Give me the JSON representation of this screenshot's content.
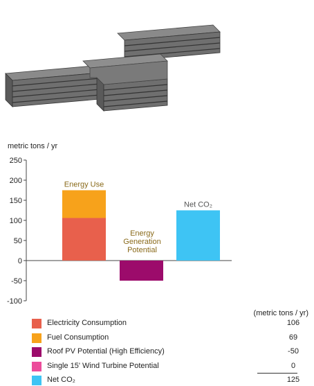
{
  "chart_data": {
    "type": "bar",
    "yunit_label": "metric tons / yr",
    "ylim": [
      -100,
      250
    ],
    "yticks": [
      250,
      200,
      150,
      100,
      50,
      0,
      -50,
      -100
    ],
    "bars": [
      {
        "annotation": "Energy Use",
        "segments": [
          {
            "name": "Electricity Consumption",
            "value": 106,
            "color": "#e8604c"
          },
          {
            "name": "Fuel Consumption",
            "value": 69,
            "color": "#f7a21b"
          }
        ]
      },
      {
        "annotation": "Energy Generation Potential",
        "annotation_lines": [
          "Energy",
          "Generation",
          "Potential"
        ],
        "segments": [
          {
            "name": "Roof PV Potential (High Efficiency)",
            "value": -50,
            "color": "#9c0b6b"
          },
          {
            "name": "Single 15' Wind Turbine Potential",
            "value": 0,
            "color": "#ec4c9b"
          }
        ]
      },
      {
        "annotation": "Net CO₂",
        "segments": [
          {
            "name": "Net CO₂",
            "value": 125,
            "color": "#3ec4f4"
          }
        ]
      }
    ]
  },
  "legend": {
    "units_header": "(metric tons / yr)",
    "items": [
      {
        "label": "Electricity Consumption",
        "value": "106",
        "color": "#e8604c"
      },
      {
        "label": "Fuel Consumption",
        "value": "69",
        "color": "#f7a21b"
      },
      {
        "label": "Roof PV Potential (High Efficiency)",
        "value": "-50",
        "color": "#9c0b6b"
      },
      {
        "label": "Single 15' Wind Turbine Potential",
        "value": "0",
        "color": "#ec4c9b"
      },
      {
        "label": "Net CO₂",
        "value": "125",
        "color": "#3ec4f4"
      }
    ]
  }
}
